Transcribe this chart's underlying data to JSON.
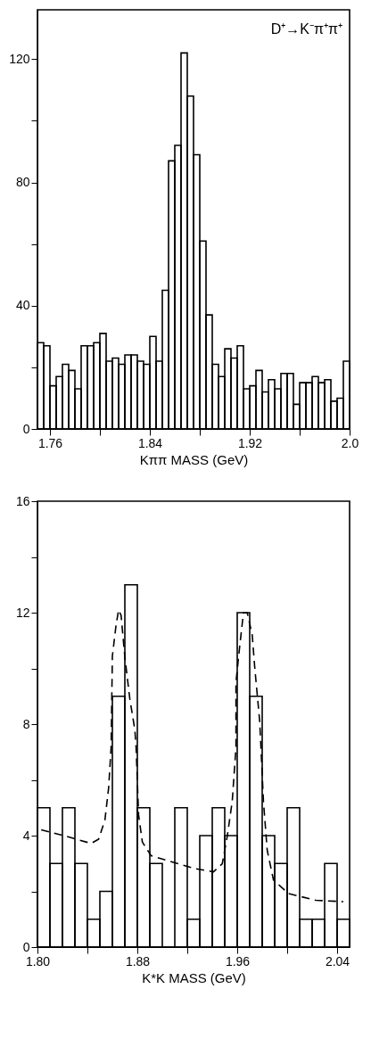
{
  "chart_data": [
    {
      "type": "histogram",
      "xlabel": "Kππ MASS (GeV)",
      "annotations": [
        "D⁺→K⁻π⁺π⁺"
      ],
      "color": "#000000",
      "bins": [
        1.75,
        1.755,
        1.76,
        1.765,
        1.77,
        1.775,
        1.78,
        1.785,
        1.79,
        1.795,
        1.8,
        1.805,
        1.81,
        1.815,
        1.82,
        1.825,
        1.83,
        1.835,
        1.84,
        1.845,
        1.85,
        1.855,
        1.86,
        1.865,
        1.87,
        1.875,
        1.88,
        1.885,
        1.89,
        1.895,
        1.9,
        1.905,
        1.91,
        1.915,
        1.92,
        1.925,
        1.93,
        1.935,
        1.94,
        1.945,
        1.95,
        1.955,
        1.96,
        1.965,
        1.97,
        1.975,
        1.98,
        1.985,
        1.99,
        1.995,
        2.0
      ],
      "values": [
        28,
        27,
        14,
        17,
        21,
        19,
        13,
        27,
        27,
        28,
        31,
        22,
        23,
        21,
        24,
        24,
        22,
        21,
        30,
        22,
        45,
        87,
        92,
        122,
        108,
        89,
        61,
        37,
        21,
        17,
        26,
        23,
        27,
        13,
        14,
        19,
        12,
        16,
        13,
        18,
        18,
        8,
        15,
        15,
        17,
        15,
        16,
        9,
        10,
        22
      ],
      "xlim": [
        1.75,
        2.0
      ],
      "xticks": [
        1.76,
        {
          "value": 1.8,
          "label": null
        },
        1.84,
        {
          "value": 1.88,
          "label": null
        },
        1.92,
        {
          "value": 1.96,
          "label": null
        },
        {
          "value": 2.0,
          "label": "2.0"
        }
      ],
      "ylim": [
        0,
        136
      ],
      "yticks": [
        0,
        {
          "value": 20,
          "label": null
        },
        40,
        {
          "value": 60,
          "label": null
        },
        80,
        {
          "value": 100,
          "label": null
        },
        120
      ],
      "grid": false
    },
    {
      "type": "histogram",
      "xlabel": "K*K MASS (GeV)",
      "bins": [
        1.8,
        1.81,
        1.82,
        1.83,
        1.84,
        1.85,
        1.86,
        1.87,
        1.88,
        1.89,
        1.9,
        1.91,
        1.92,
        1.93,
        1.94,
        1.95,
        1.96,
        1.97,
        1.98,
        1.99,
        2.0,
        2.01,
        2.02,
        2.03,
        2.04,
        2.05
      ],
      "series": [
        {
          "color": "#000000",
          "values": [
            5,
            3,
            5,
            3,
            1,
            2,
            9,
            13,
            5,
            3,
            0,
            5,
            1,
            4,
            5,
            4,
            12,
            9,
            4,
            3,
            5,
            1,
            1,
            3,
            1
          ]
        },
        {
          "type": "line",
          "color": "#000000",
          "line_style": "dashed",
          "x": [
            1.803,
            1.825,
            1.843,
            1.849,
            1.854,
            1.857,
            1.859,
            1.86,
            1.863,
            1.865,
            1.867,
            1.87,
            1.874,
            1.878,
            1.879,
            1.881,
            1.884,
            1.891,
            1.909,
            1.926,
            1.941,
            1.948,
            1.952,
            1.956,
            1.959,
            1.959,
            1.962,
            1.965,
            1.968,
            1.972,
            1.974,
            1.978,
            1.979,
            1.981,
            1.984,
            1.989,
            2.001,
            2.023,
            2.045
          ],
          "values": [
            4.21,
            3.95,
            3.72,
            3.87,
            4.55,
            5.71,
            7.17,
            10.44,
            11.57,
            12.1,
            11.9,
            10.4,
            8.9,
            7.8,
            7.17,
            4.74,
            3.77,
            3.28,
            3.04,
            2.82,
            2.7,
            2.99,
            3.97,
            5.23,
            7.17,
            9.5,
            10.8,
            12.0,
            12.0,
            11.2,
            10.05,
            8.1,
            7.17,
            5.23,
            3.48,
            2.41,
            1.92,
            1.68,
            1.63
          ]
        }
      ],
      "xlim": [
        1.8,
        2.05
      ],
      "xticks": [
        {
          "value": 1.8,
          "label": "1.80"
        },
        {
          "value": 1.84,
          "label": null
        },
        1.88,
        {
          "value": 1.92,
          "label": null
        },
        1.96,
        {
          "value": 2.0,
          "label": null
        },
        2.04
      ],
      "ylim": [
        0,
        16
      ],
      "yticks": [
        0,
        {
          "value": 2,
          "label": null
        },
        4,
        {
          "value": 6,
          "label": null
        },
        8,
        {
          "value": 10,
          "label": null
        },
        12,
        {
          "value": 14,
          "label": null
        },
        16
      ],
      "grid": false
    }
  ]
}
